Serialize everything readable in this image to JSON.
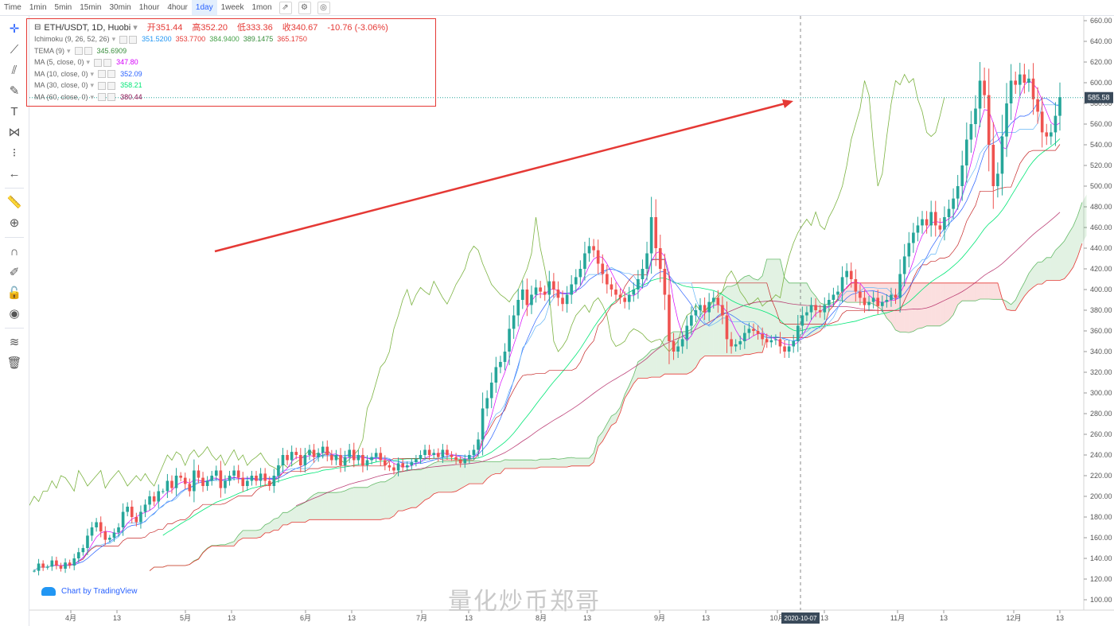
{
  "toolbar": {
    "items": [
      "Time",
      "1min",
      "5min",
      "15min",
      "30min",
      "1hour",
      "4hour",
      "1day",
      "1week",
      "1mon"
    ],
    "active": "1day"
  },
  "legend": {
    "symbol": "ETH/USDT, 1D, Huobi",
    "ohlc": {
      "open_label": "开",
      "open": "351.44",
      "high_label": "高",
      "high": "352.20",
      "low_label": "低",
      "low": "333.36",
      "close_label": "收",
      "close": "340.67",
      "change": "-10.76 (-3.06%)"
    },
    "indicators": [
      {
        "name": "Ichimoku (9, 26, 52, 26)",
        "values": [
          "351.5200",
          "353.7700",
          "384.9400",
          "389.1475",
          "365.1750"
        ],
        "colors": [
          "#2196f3",
          "#e53935",
          "#43a047",
          "#388e3c",
          "#e53935"
        ]
      },
      {
        "name": "TEMA (9)",
        "values": [
          "345.6909"
        ],
        "colors": [
          "#388e3c"
        ]
      },
      {
        "name": "MA (5, close, 0)",
        "values": [
          "347.80"
        ],
        "colors": [
          "#d500f9"
        ]
      },
      {
        "name": "MA (10, close, 0)",
        "values": [
          "352.09"
        ],
        "colors": [
          "#2962ff"
        ]
      },
      {
        "name": "MA (30, close, 0)",
        "values": [
          "358.21"
        ],
        "colors": [
          "#00e676"
        ]
      },
      {
        "name": "MA (60, close, 0)",
        "values": [
          "380.44"
        ],
        "colors": [
          "#880e4f"
        ]
      }
    ]
  },
  "chart_data": {
    "type": "candlestick",
    "price_labels": [
      "660.00",
      "640.00",
      "620.00",
      "600.00",
      "580.00",
      "560.00",
      "540.00",
      "520.00",
      "500.00",
      "480.00",
      "460.00",
      "440.00",
      "420.00",
      "400.00",
      "380.00",
      "360.00",
      "340.00",
      "320.00",
      "300.00",
      "280.00",
      "260.00",
      "240.00",
      "220.00",
      "200.00",
      "180.00",
      "160.00",
      "140.00",
      "120.00",
      "100.00"
    ],
    "ylim": [
      90,
      670
    ],
    "time_labels": [
      "4月",
      "13",
      "5月",
      "13",
      "6月",
      "13",
      "7月",
      "13",
      "8月",
      "13",
      "9月",
      "13",
      "10月",
      "13",
      "11月",
      "13",
      "12月",
      "13"
    ],
    "current_price": "585.58",
    "crosshair_date": "2020-10-07",
    "closes": [
      128,
      135,
      131,
      132,
      138,
      133,
      130,
      136,
      133,
      140,
      146,
      150,
      162,
      170,
      175,
      166,
      158,
      160,
      165,
      170,
      185,
      190,
      180,
      175,
      185,
      192,
      200,
      195,
      205,
      205,
      215,
      208,
      220,
      218,
      212,
      205,
      225,
      218,
      210,
      215,
      220,
      225,
      208,
      215,
      220,
      225,
      218,
      210,
      215,
      220,
      215,
      222,
      215,
      210,
      220,
      230,
      240,
      235,
      243,
      240,
      230,
      240,
      245,
      238,
      242,
      248,
      240,
      235,
      240,
      230,
      238,
      245,
      235,
      240,
      230,
      235,
      238,
      242,
      235,
      230,
      228,
      225,
      232,
      228,
      230,
      233,
      236,
      240,
      245,
      240,
      242,
      238,
      245,
      240,
      238,
      235,
      232,
      236,
      240,
      245,
      255,
      285,
      295,
      310,
      325,
      330,
      340,
      362,
      375,
      390,
      400,
      385,
      395,
      402,
      398,
      395,
      408,
      400,
      392,
      386,
      395,
      405,
      412,
      420,
      435,
      442,
      438,
      425,
      415,
      405,
      400,
      395,
      392,
      388,
      395,
      400,
      410,
      420,
      435,
      470,
      440,
      420,
      395,
      350,
      340,
      345,
      352,
      365,
      375,
      380,
      385,
      378,
      388,
      392,
      385,
      375,
      352,
      345,
      347,
      350,
      358,
      362,
      360,
      357,
      352,
      349,
      351,
      352,
      345,
      340,
      345,
      350,
      365,
      375,
      378,
      385,
      380,
      378,
      385,
      390,
      395,
      398,
      412,
      418,
      410,
      398,
      392,
      385,
      388,
      392,
      384,
      388,
      390,
      395,
      392,
      415,
      432,
      445,
      455,
      462,
      468,
      462,
      475,
      462,
      458,
      470,
      478,
      488,
      500,
      520,
      545,
      560,
      575,
      602,
      588,
      540,
      500,
      512,
      548,
      580,
      602,
      598,
      608,
      600,
      604,
      584,
      572,
      552,
      548,
      552,
      568,
      586
    ]
  },
  "credit": "Chart by TradingView",
  "watermark": "量化炒币郑哥"
}
